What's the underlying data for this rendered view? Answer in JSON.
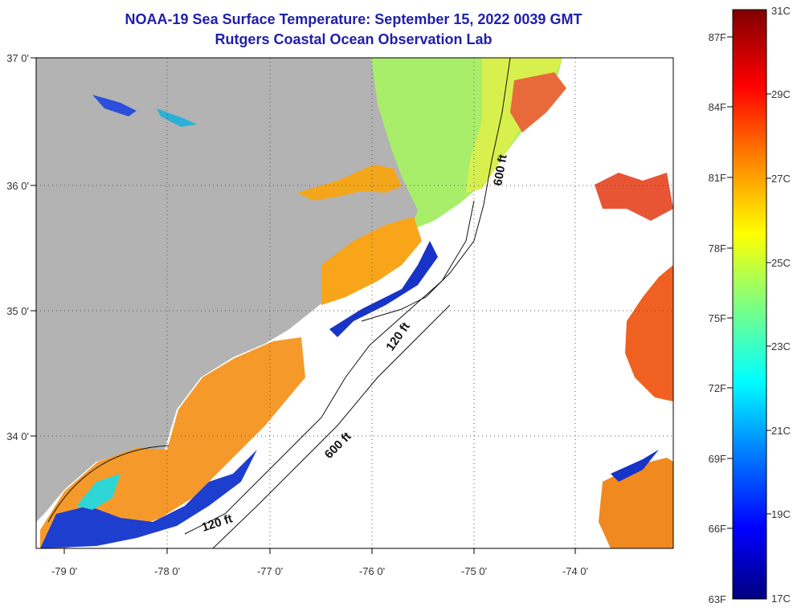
{
  "title": "NOAA-19 Sea Surface Temperature:  September 15, 2022 0039 GMT",
  "subtitle": "Rutgers Coastal Ocean Observation Lab",
  "map": {
    "lon_ticks": [
      "-79 0'",
      "-78 0'",
      "-77 0'",
      "-76 0'",
      "-75 0'",
      "-74 0'"
    ],
    "lat_ticks": [
      "37 0'",
      "36 0'",
      "35 0'",
      "34 0'"
    ],
    "contour_labels": [
      "600 ft",
      "120 ft",
      "600 ft",
      "120 ft"
    ],
    "colors": {
      "land": "#b3b3b3",
      "ocean_missing": "#ffffff",
      "title": "#1f1fa8"
    }
  },
  "colorbar": {
    "fahrenheit": [
      "87F",
      "84F",
      "81F",
      "78F",
      "75F",
      "72F",
      "69F",
      "66F",
      "63F"
    ],
    "celsius": [
      "31C",
      "29C",
      "27C",
      "25C",
      "23C",
      "21C",
      "19C",
      "17C"
    ]
  }
}
